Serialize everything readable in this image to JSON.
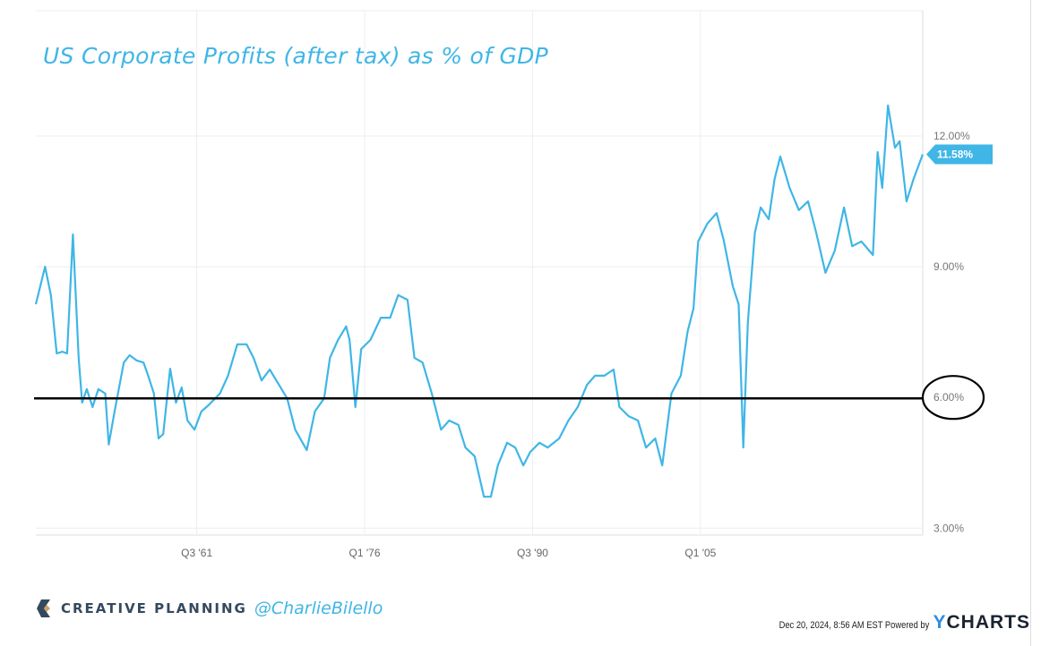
{
  "chart_data": {
    "type": "line",
    "title": "US Corporate Profits (after tax) as % of GDP",
    "xlabel": "",
    "ylabel": "",
    "xlim": [
      1947.6,
      2024.2
    ],
    "ylim": [
      2.8,
      15.2
    ],
    "grid": true,
    "x_ticks": [
      {
        "label": "Q3 '61",
        "value": 1961.5
      },
      {
        "label": "Q1 '76",
        "value": 1976.0
      },
      {
        "label": "Q3 '90",
        "value": 1990.5
      },
      {
        "label": "Q1 '05",
        "value": 2005.0
      }
    ],
    "y_ticks": [
      {
        "label": "12.00%",
        "value": 12
      },
      {
        "label": "9.00%",
        "value": 9
      },
      {
        "label": "6.00%",
        "value": 6
      },
      {
        "label": "3.00%",
        "value": 3
      }
    ],
    "last_value_label": "11.58%",
    "reference_line": {
      "value": 6,
      "color": "#000000",
      "highlighted_label": "6.00%"
    },
    "series": [
      {
        "name": "US Corporate Profits (after tax) as % of GDP",
        "color": "#3fb6e6",
        "x": [
          1947.6,
          1948.4,
          1948.9,
          1949.4,
          1949.9,
          1950.3,
          1950.8,
          1951.3,
          1951.6,
          1952.0,
          1952.5,
          1953.0,
          1953.6,
          1953.9,
          1954.4,
          1955.2,
          1955.7,
          1956.3,
          1956.9,
          1957.3,
          1957.8,
          1958.2,
          1958.6,
          1959.2,
          1959.7,
          1960.2,
          1960.7,
          1961.3,
          1961.9,
          1962.5,
          1963.5,
          1964.2,
          1965.0,
          1965.8,
          1966.4,
          1967.1,
          1967.8,
          1968.6,
          1969.3,
          1970.0,
          1971.0,
          1971.7,
          1972.5,
          1973.0,
          1973.7,
          1974.4,
          1974.7,
          1975.2,
          1975.7,
          1976.5,
          1977.4,
          1978.2,
          1978.9,
          1979.7,
          1980.3,
          1981.0,
          1981.8,
          1982.6,
          1983.3,
          1984.1,
          1984.7,
          1985.5,
          1986.3,
          1986.9,
          1987.5,
          1988.3,
          1989.0,
          1989.7,
          1990.3,
          1991.1,
          1991.8,
          1992.8,
          1993.6,
          1994.4,
          1995.2,
          1995.9,
          1996.7,
          1997.5,
          1998.0,
          1998.8,
          1999.6,
          2000.3,
          2001.1,
          2001.7,
          2002.5,
          2003.3,
          2003.9,
          2004.4,
          2004.8,
          2005.6,
          2006.4,
          2007.0,
          2007.8,
          2008.3,
          2008.7,
          2009.1,
          2009.7,
          2010.2,
          2010.9,
          2011.4,
          2011.9,
          2012.7,
          2013.5,
          2014.3,
          2015.0,
          2015.8,
          2016.6,
          2017.4,
          2018.1,
          2018.9,
          2019.9,
          2020.3,
          2020.7,
          2021.2,
          2021.8,
          2022.2,
          2022.8,
          2023.4,
          2024.2
        ],
        "y": [
          8.14,
          9.0,
          8.35,
          7.01,
          7.05,
          7.01,
          9.74,
          6.91,
          5.88,
          6.19,
          5.78,
          6.19,
          6.09,
          4.92,
          5.68,
          6.8,
          6.97,
          6.85,
          6.8,
          6.5,
          6.09,
          5.06,
          5.16,
          6.66,
          5.88,
          6.23,
          5.47,
          5.26,
          5.68,
          5.82,
          6.09,
          6.5,
          7.22,
          7.22,
          6.91,
          6.39,
          6.64,
          6.29,
          5.98,
          5.26,
          4.79,
          5.68,
          5.98,
          6.91,
          7.32,
          7.63,
          7.32,
          5.78,
          7.11,
          7.32,
          7.83,
          7.83,
          8.35,
          8.24,
          6.91,
          6.8,
          6.09,
          5.26,
          5.47,
          5.37,
          4.85,
          4.65,
          3.72,
          3.72,
          4.44,
          4.96,
          4.85,
          4.44,
          4.75,
          4.96,
          4.85,
          5.06,
          5.47,
          5.78,
          6.29,
          6.5,
          6.5,
          6.64,
          5.78,
          5.57,
          5.47,
          4.85,
          5.06,
          4.44,
          6.09,
          6.5,
          7.52,
          8.04,
          9.58,
          9.99,
          10.23,
          9.62,
          8.55,
          8.14,
          4.85,
          7.73,
          9.78,
          10.36,
          10.09,
          11.01,
          11.53,
          10.81,
          10.3,
          10.5,
          9.78,
          8.86,
          9.37,
          10.36,
          9.47,
          9.58,
          9.27,
          11.63,
          10.81,
          12.7,
          11.73,
          11.88,
          10.5,
          11.01,
          11.58
        ]
      }
    ]
  },
  "branding": {
    "company": "CREATIVE PLANNING",
    "handle": "@CharlieBilello",
    "timestamp": "Dec 20, 2024, 8:56 AM EST Powered by",
    "provider_y": "Y",
    "provider_rest": "CHARTS"
  }
}
